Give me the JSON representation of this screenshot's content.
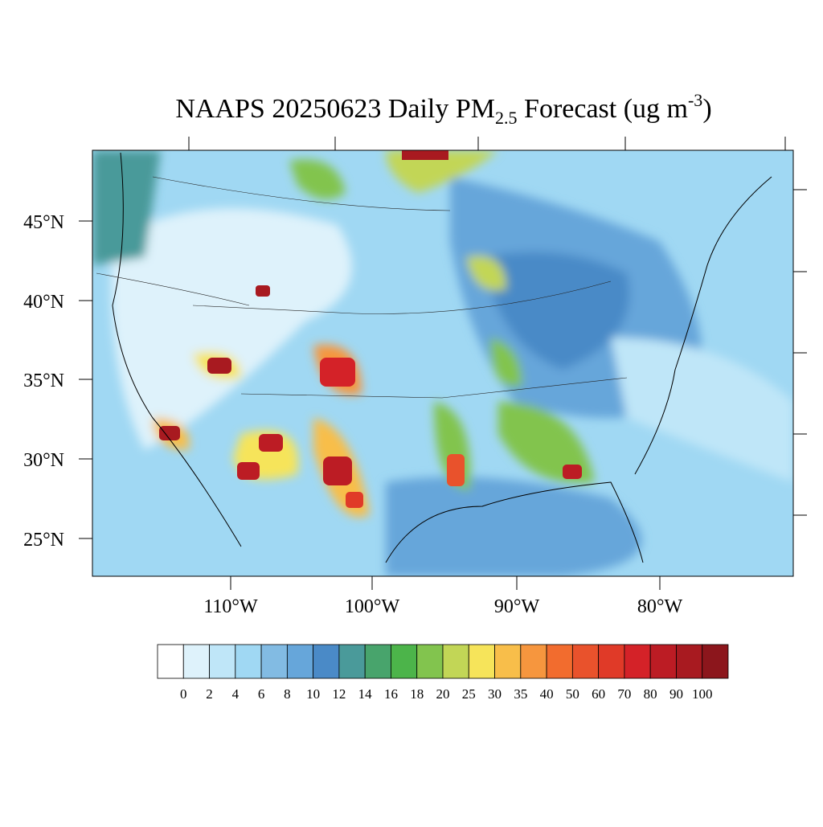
{
  "title": {
    "prefix": "NAAPS 20250623 Daily PM",
    "subscript": "2.5",
    "middle": " Forecast (ug m",
    "superscript": "-3",
    "suffix": ")"
  },
  "latitude_labels": [
    "45°N",
    "40°N",
    "35°N",
    "30°N",
    "25°N"
  ],
  "longitude_labels": [
    "110°W",
    "100°W",
    "90°W",
    "80°W"
  ],
  "colorbar": {
    "levels": [
      0,
      2,
      4,
      6,
      8,
      10,
      12,
      14,
      16,
      18,
      20,
      25,
      30,
      35,
      40,
      50,
      60,
      70,
      80,
      90,
      100
    ],
    "colors": [
      "#ffffff",
      "#def2fb",
      "#bfe6f8",
      "#a0d8f3",
      "#82bbe3",
      "#66a6da",
      "#4a8ac7",
      "#4a9a9a",
      "#48a46c",
      "#4cb44a",
      "#82c44e",
      "#c2d656",
      "#f6e45a",
      "#f8be4a",
      "#f6963e",
      "#f26c2e",
      "#e9522c",
      "#e03a28",
      "#d42228",
      "#bc1c24",
      "#a81a20",
      "#8c161c"
    ]
  }
}
